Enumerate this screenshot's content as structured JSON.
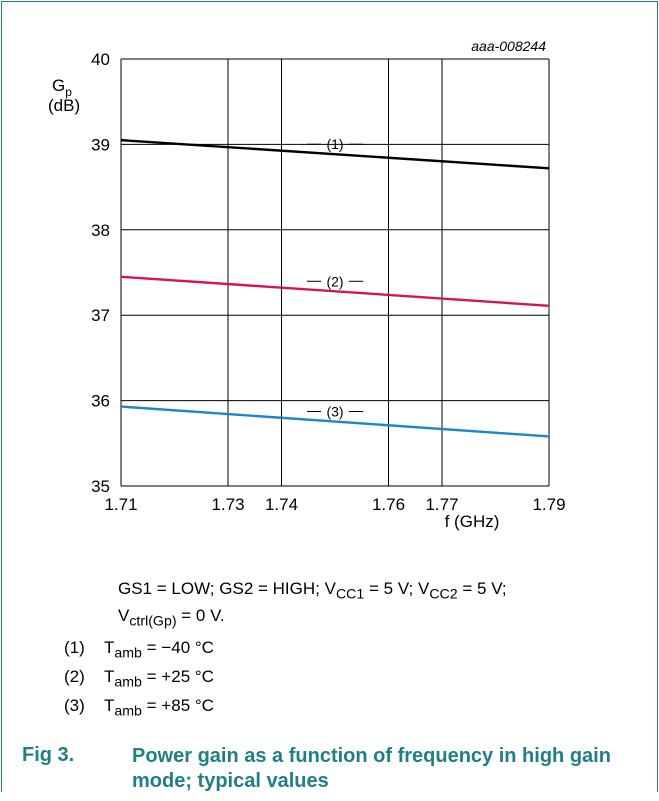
{
  "chart_data": {
    "type": "line",
    "reference": "aaa-008244",
    "ylabel_symbol": "G",
    "ylabel_sub": "p",
    "ylabel_unit": "(dB)",
    "xlabel": "f (GHz)",
    "xlim": [
      1.71,
      1.79
    ],
    "ylim": [
      35,
      40
    ],
    "x_ticks": [
      1.71,
      1.73,
      1.74,
      1.76,
      1.77,
      1.79
    ],
    "x_tick_labels": [
      "1.71",
      "1.73",
      "1.74",
      "1.76",
      "1.77",
      "1.79"
    ],
    "y_ticks": [
      35,
      36,
      37,
      38,
      39,
      40
    ],
    "y_tick_labels": [
      "35",
      "36",
      "37",
      "38",
      "39",
      "40"
    ],
    "grid": true,
    "series": [
      {
        "name": "(1)",
        "color": "#000000",
        "x": [
          1.71,
          1.79
        ],
        "y": [
          39.05,
          38.72
        ],
        "label_x": 1.75
      },
      {
        "name": "(2)",
        "color": "#d4145a",
        "x": [
          1.71,
          1.79
        ],
        "y": [
          37.45,
          37.11
        ],
        "label_x": 1.75
      },
      {
        "name": "(3)",
        "color": "#1a88c9",
        "x": [
          1.71,
          1.79
        ],
        "y": [
          35.93,
          35.58
        ],
        "label_x": 1.75
      }
    ]
  },
  "conditions": {
    "line1": "GS1 = LOW; GS2 = HIGH; V",
    "cc1_sub": "CC1",
    "mid1": " = 5 V; V",
    "cc2_sub": "CC2",
    "end1": " = 5 V;",
    "line2_v": "V",
    "ctrl_sub": "ctrl(Gp)",
    "line2_end": " = 0 V."
  },
  "legend": [
    {
      "num": "(1)",
      "sym": "T",
      "sub": "amb",
      "val": " = −40 °C"
    },
    {
      "num": "(2)",
      "sym": "T",
      "sub": "amb",
      "val": " = +25 °C"
    },
    {
      "num": "(3)",
      "sym": "T",
      "sub": "amb",
      "val": " = +85 °C"
    }
  ],
  "caption": {
    "label": "Fig 3.",
    "text": "Power gain as a function of frequency in high gain mode; typical values"
  }
}
